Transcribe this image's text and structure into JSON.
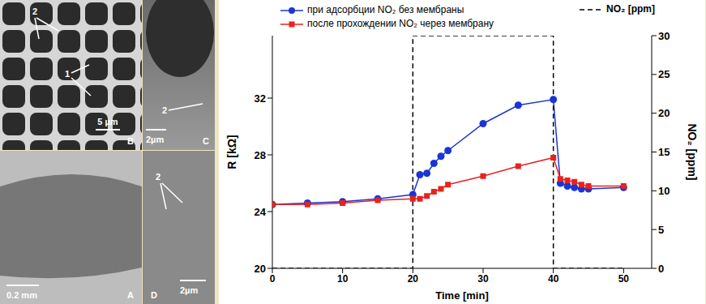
{
  "figure_panels": [
    {
      "label": "B",
      "scale_bar": "5 µm",
      "annotations": [
        "2",
        "1"
      ]
    },
    {
      "label": "C",
      "scale_bar": "2µm",
      "annotations": [
        "2"
      ]
    },
    {
      "label": "A",
      "scale_bar": "0.2 mm"
    },
    {
      "label": "D",
      "scale_bar": "2µm",
      "annotations": [
        "2"
      ]
    }
  ],
  "chart_data": {
    "type": "line",
    "x_label": "Time [min]",
    "y_label": "R [kΩ]",
    "y2_label": "NO₂ [ppm]",
    "xlim": [
      0,
      54
    ],
    "xticks": [
      0,
      10,
      20,
      30,
      40,
      50
    ],
    "ylim": [
      20,
      36.4
    ],
    "yticks": [
      20,
      24,
      28,
      32
    ],
    "y2lim": [
      0,
      30
    ],
    "y2ticks": [
      0,
      5,
      10,
      15,
      20,
      25,
      30
    ],
    "legend": "upper left",
    "series": [
      {
        "name": "при адсорбции NO₂ без мембраны",
        "color": "#1a35d6",
        "marker": "circle",
        "line_style": "solid",
        "x": [
          0,
          5,
          10,
          15,
          20,
          21,
          22,
          23,
          24,
          25,
          30,
          35,
          40,
          41,
          42,
          43,
          44,
          45,
          50
        ],
        "values": [
          24.5,
          24.6,
          24.7,
          24.9,
          25.2,
          26.6,
          26.7,
          27.4,
          27.9,
          28.3,
          30.2,
          31.5,
          31.9,
          26.0,
          25.8,
          25.7,
          25.6,
          25.6,
          25.7
        ]
      },
      {
        "name": "после прохождении NO₂ через мембрану",
        "color": "#e8221e",
        "marker": "square",
        "line_style": "solid",
        "x": [
          0,
          5,
          10,
          15,
          20,
          21,
          22,
          23,
          24,
          25,
          30,
          35,
          40,
          41,
          42,
          43,
          44,
          45,
          50
        ],
        "values": [
          24.5,
          24.5,
          24.6,
          24.8,
          24.9,
          24.9,
          25.1,
          25.4,
          25.6,
          25.9,
          26.5,
          27.2,
          27.8,
          26.3,
          26.2,
          26.1,
          25.9,
          25.8,
          25.8
        ]
      },
      {
        "name": "NO₂ [ppm]",
        "color": "#000000",
        "marker": "none",
        "line_style": "dashed",
        "axis": "y2",
        "x": [
          0,
          20,
          20,
          40,
          40,
          50
        ],
        "values": [
          0,
          0,
          30,
          30,
          0,
          0
        ]
      }
    ]
  }
}
